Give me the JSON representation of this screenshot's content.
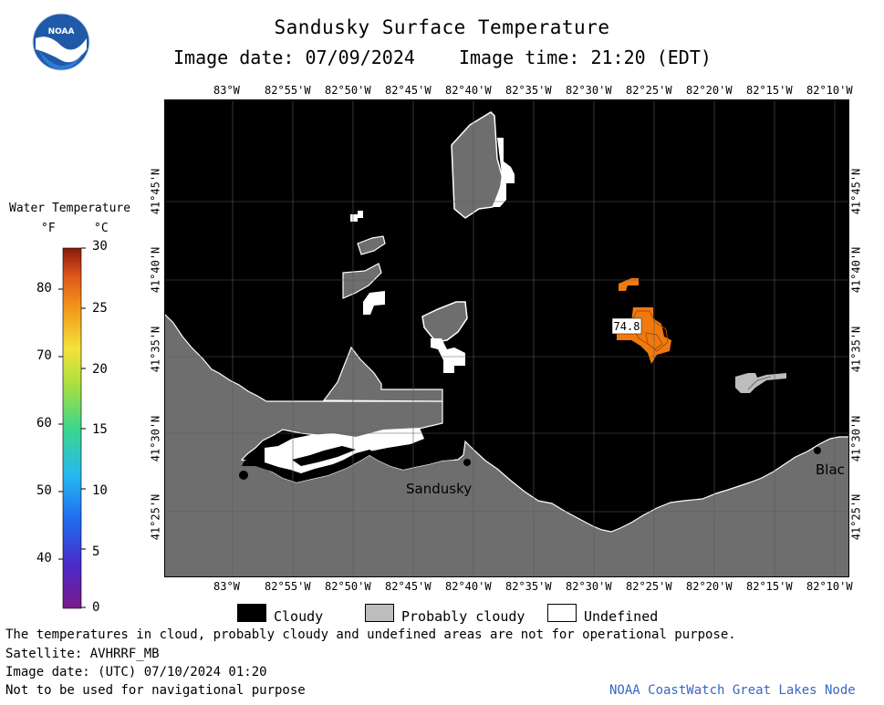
{
  "header": {
    "title": "Sandusky Surface Temperature",
    "image_date": "Image date: 07/09/2024",
    "image_time": "Image time: 21:20 (EDT)"
  },
  "logo": {
    "text": "NOAA"
  },
  "map": {
    "lon_labels": [
      "83°W",
      "82°55'W",
      "82°50'W",
      "82°45'W",
      "82°40'W",
      "82°35'W",
      "82°30'W",
      "82°25'W",
      "82°20'W",
      "82°15'W",
      "82°10'W"
    ],
    "lat_labels": [
      "41°45'N",
      "41°40'N",
      "41°35'N",
      "41°30'N",
      "41°25'N"
    ],
    "place_labels": {
      "sandusky": "Sandusky",
      "blac": "Blac"
    },
    "temp_label": "74.8",
    "colors": {
      "cloudy": "#000000",
      "land": "#6e6e6e",
      "probably_cloudy": "#bdbdbd",
      "undefined": "#ffffff",
      "warm": "#f07a10"
    }
  },
  "colorbar": {
    "title": "Water Temperature",
    "unit_f": "°F",
    "unit_c": "°C",
    "f_ticks": [
      "80",
      "70",
      "60",
      "50",
      "40"
    ],
    "c_ticks": [
      "30",
      "25",
      "20",
      "15",
      "10",
      "5",
      "0"
    ]
  },
  "legend": {
    "cloudy": "Cloudy",
    "probably_cloudy": "Probably cloudy",
    "undefined": "Undefined"
  },
  "footer": {
    "line1": "The temperatures in cloud, probably cloudy and undefined areas are not for operational purpose.",
    "line2": "Satellite: AVHRRF_MB",
    "line3": "Image date: (UTC) 07/10/2024  01:20",
    "line4": "Not to be used for navigational purpose",
    "credit": "NOAA CoastWatch Great Lakes Node"
  }
}
